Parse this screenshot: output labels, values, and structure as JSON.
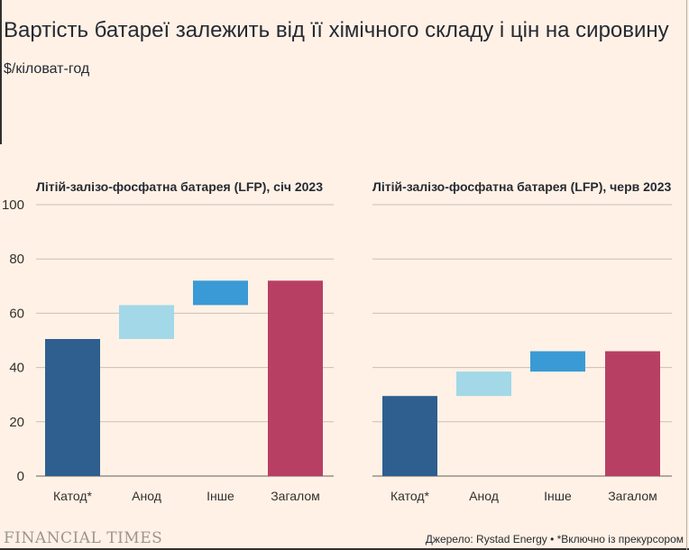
{
  "header": {
    "title": "Вартість батареї залежить від її хімічного складу і цін на сировину",
    "unit": "$/кіловат-год"
  },
  "footer": {
    "logo": "FINANCIAL TIMES",
    "source": "Джерело: Rystad Energy • *Включно із прекурсором"
  },
  "colors": {
    "background": "#fff1e5",
    "cathode": "#2e5f8f",
    "anode": "#a2d8e7",
    "other": "#3a9ad5",
    "total": "#b83f64",
    "grid": "#c9c0b6"
  },
  "chart_data": [
    {
      "type": "bar",
      "subtype": "waterfall",
      "title": "Літій-залізо-фосфатна батарея (LFP), січ 2023",
      "categories": [
        "Катод*",
        "Анод",
        "Інше",
        "Загалом"
      ],
      "values": [
        50.5,
        12.5,
        9,
        72
      ],
      "bar_ranges": [
        [
          0,
          50.5
        ],
        [
          50.5,
          63
        ],
        [
          63,
          72
        ],
        [
          0,
          72
        ]
      ],
      "ylim": [
        0,
        100
      ],
      "yticks": [
        0,
        20,
        40,
        60,
        80,
        100
      ],
      "grid": true
    },
    {
      "type": "bar",
      "subtype": "waterfall",
      "title": "Літій-залізо-фосфатна батарея (LFP), черв 2023",
      "categories": [
        "Катод*",
        "Анод",
        "Інше",
        "Загалом"
      ],
      "values": [
        29.5,
        9,
        7.5,
        46
      ],
      "bar_ranges": [
        [
          0,
          29.5
        ],
        [
          29.5,
          38.5
        ],
        [
          38.5,
          46
        ],
        [
          0,
          46
        ]
      ],
      "ylim": [
        0,
        100
      ],
      "yticks": [
        0,
        20,
        40,
        60,
        80,
        100
      ],
      "grid": true
    }
  ]
}
